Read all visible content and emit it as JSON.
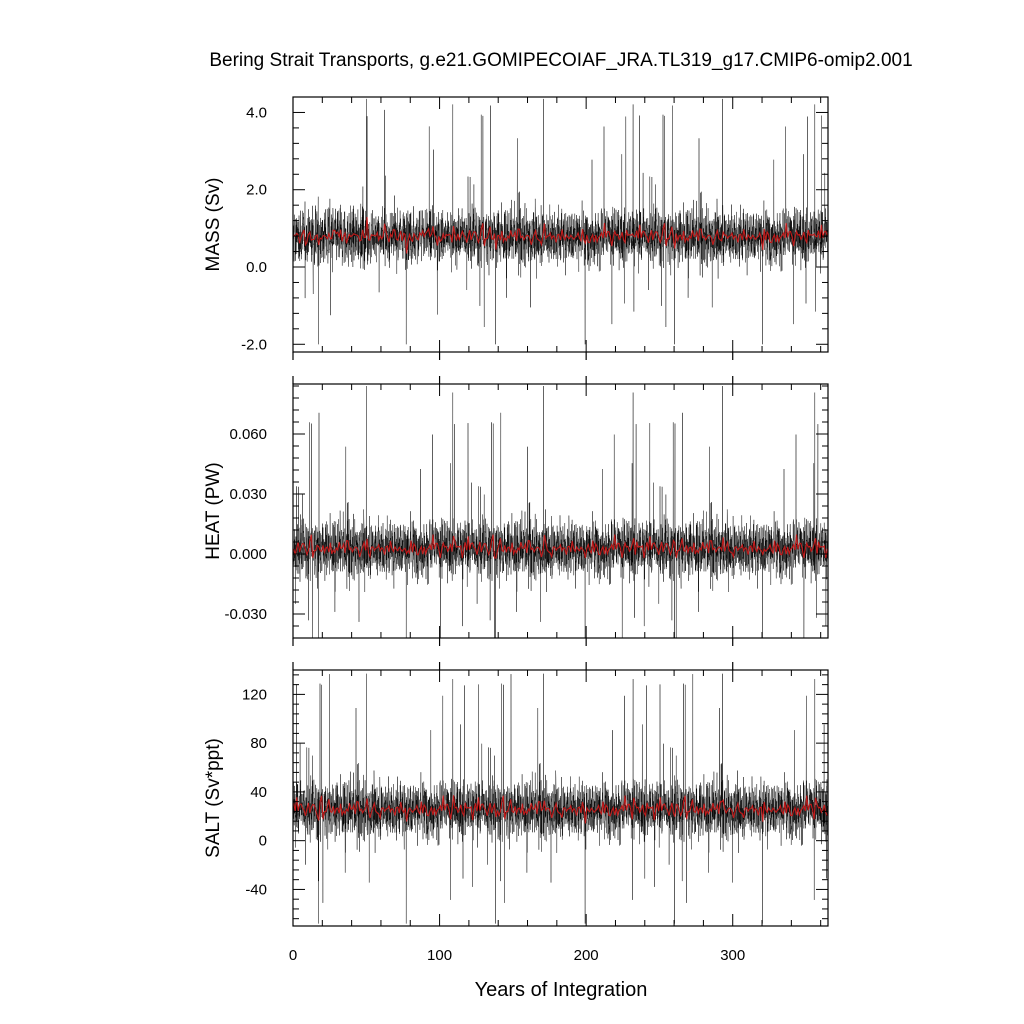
{
  "title": "Bering Strait Transports, g.e21.GOMIPECOIAF_JRA.TL319_g17.CMIP6-omip2.001",
  "colors": {
    "monthly_line": "#000000",
    "annual_line": "#c21a1a",
    "axis": "#000000"
  },
  "chart_data": [
    {
      "type": "line",
      "ylabel": "MASS (Sv)",
      "xlim": [
        0,
        365
      ],
      "ylim": [
        -2.2,
        4.4
      ],
      "yticks": [
        -2.0,
        0.0,
        2.0,
        4.0
      ],
      "yticklabels": [
        "-2.0",
        "0.0",
        "2.0",
        "4.0"
      ],
      "xticks": [
        0,
        100,
        200,
        300
      ],
      "grid": false,
      "series": [
        {
          "style": "monthly",
          "mean": 0.8,
          "spread": 0.55,
          "spike_max": 4.35,
          "spike_min": -2.0
        },
        {
          "style": "annual",
          "mean": 0.8,
          "range": [
            0.3,
            1.4
          ]
        }
      ]
    },
    {
      "type": "line",
      "ylabel": "HEAT (PW)",
      "xlim": [
        0,
        365
      ],
      "ylim": [
        -0.042,
        0.085
      ],
      "yticks": [
        -0.03,
        0.0,
        0.03,
        0.06
      ],
      "yticklabels": [
        "-0.030",
        "0.000",
        "0.030",
        "0.060"
      ],
      "xticks": [
        0,
        100,
        200,
        300
      ],
      "grid": false,
      "series": [
        {
          "style": "monthly",
          "mean": 0.003,
          "spread": 0.011,
          "spike_max": 0.084,
          "spike_min": -0.042
        },
        {
          "style": "annual",
          "mean": 0.003,
          "range": [
            -0.002,
            0.016
          ]
        }
      ]
    },
    {
      "type": "line",
      "ylabel": "SALT (Sv*ppt)",
      "xlim": [
        0,
        365
      ],
      "ylim": [
        -70,
        140
      ],
      "yticks": [
        -40,
        0,
        40,
        80,
        120
      ],
      "yticklabels": [
        "-40",
        "0",
        "40",
        "80",
        "120"
      ],
      "xticks": [
        0,
        100,
        200,
        300
      ],
      "xticklabels": [
        "0",
        "100",
        "200",
        "300"
      ],
      "xlabel": "Years of Integration",
      "grid": false,
      "series": [
        {
          "style": "monthly",
          "mean": 26,
          "spread": 18,
          "spike_max": 137,
          "spike_min": -68
        },
        {
          "style": "annual",
          "mean": 26,
          "range": [
            10,
            45
          ]
        }
      ]
    }
  ]
}
